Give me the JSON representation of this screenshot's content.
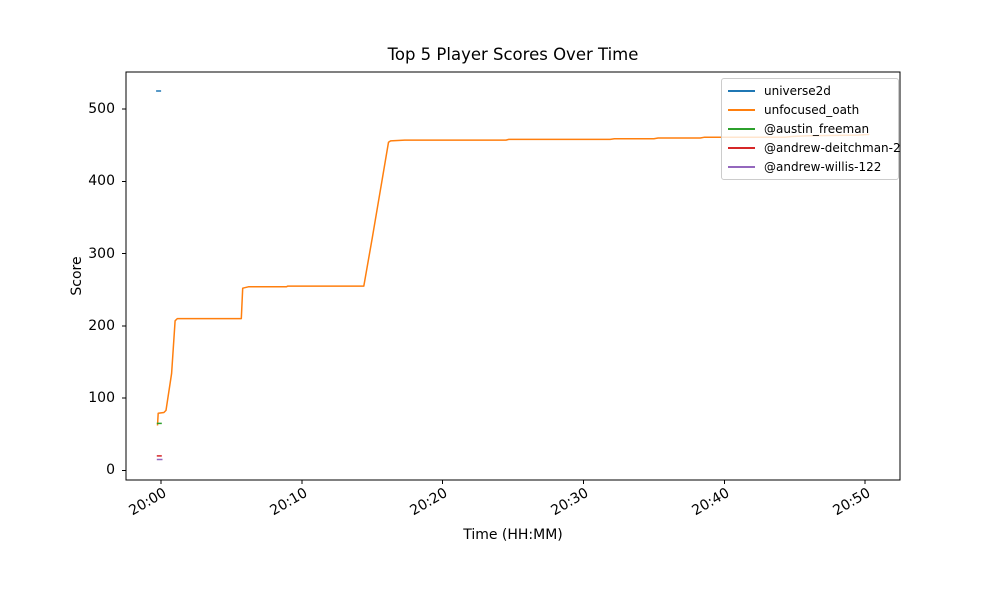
{
  "chart_data": {
    "type": "line",
    "title": "Top 5 Player Scores Over Time",
    "xlabel": "Time (HH:MM)",
    "ylabel": "Score",
    "x_unit": "minutes_after_20:00",
    "xlim": [
      -2.49,
      52.48
    ],
    "ylim": [
      -13.4,
      551.3
    ],
    "grid": false,
    "legend_position": "upper-right",
    "x_ticks": [
      {
        "value": 0,
        "label": "20:00"
      },
      {
        "value": 10,
        "label": "20:10"
      },
      {
        "value": 20,
        "label": "20:20"
      },
      {
        "value": 30,
        "label": "20:30"
      },
      {
        "value": 40,
        "label": "20:40"
      },
      {
        "value": 50,
        "label": "20:50"
      }
    ],
    "y_ticks": [
      {
        "value": 0,
        "label": "0"
      },
      {
        "value": 100,
        "label": "100"
      },
      {
        "value": 200,
        "label": "200"
      },
      {
        "value": 300,
        "label": "300"
      },
      {
        "value": 400,
        "label": "400"
      },
      {
        "value": 500,
        "label": "500"
      }
    ],
    "series": [
      {
        "name": "universe2d",
        "color": "#1f77b4",
        "points": [
          [
            -0.35,
            525
          ],
          [
            0.0,
            525
          ]
        ]
      },
      {
        "name": "unfocused_oath",
        "color": "#ff7f0e",
        "points": [
          [
            -0.25,
            62
          ],
          [
            -0.2,
            79
          ],
          [
            0.2,
            80
          ],
          [
            0.35,
            83
          ],
          [
            0.75,
            134
          ],
          [
            1.0,
            207
          ],
          [
            1.15,
            210
          ],
          [
            5.7,
            210
          ],
          [
            5.8,
            252
          ],
          [
            6.2,
            254
          ],
          [
            8.9,
            254
          ],
          [
            9.0,
            255
          ],
          [
            14.4,
            255
          ],
          [
            15.0,
            322
          ],
          [
            16.15,
            454
          ],
          [
            16.3,
            456
          ],
          [
            17.3,
            457
          ],
          [
            24.5,
            457
          ],
          [
            24.7,
            458
          ],
          [
            31.9,
            458
          ],
          [
            32.2,
            459
          ],
          [
            35.0,
            459
          ],
          [
            35.3,
            460
          ],
          [
            38.3,
            460
          ],
          [
            38.6,
            461
          ],
          [
            44.3,
            461
          ],
          [
            44.8,
            462
          ],
          [
            46.0,
            463
          ],
          [
            49.5,
            464
          ],
          [
            50.3,
            465
          ]
        ]
      },
      {
        "name": "@austin_freeman",
        "color": "#2ca02c",
        "points": [
          [
            -0.3,
            65
          ],
          [
            0.05,
            65
          ]
        ]
      },
      {
        "name": "@andrew-deitchman-2",
        "color": "#d62728",
        "points": [
          [
            -0.3,
            20
          ],
          [
            0.05,
            20
          ]
        ]
      },
      {
        "name": "@andrew-willis-122",
        "color": "#9467bd",
        "points": [
          [
            -0.3,
            15
          ],
          [
            0.1,
            15
          ]
        ]
      }
    ]
  }
}
